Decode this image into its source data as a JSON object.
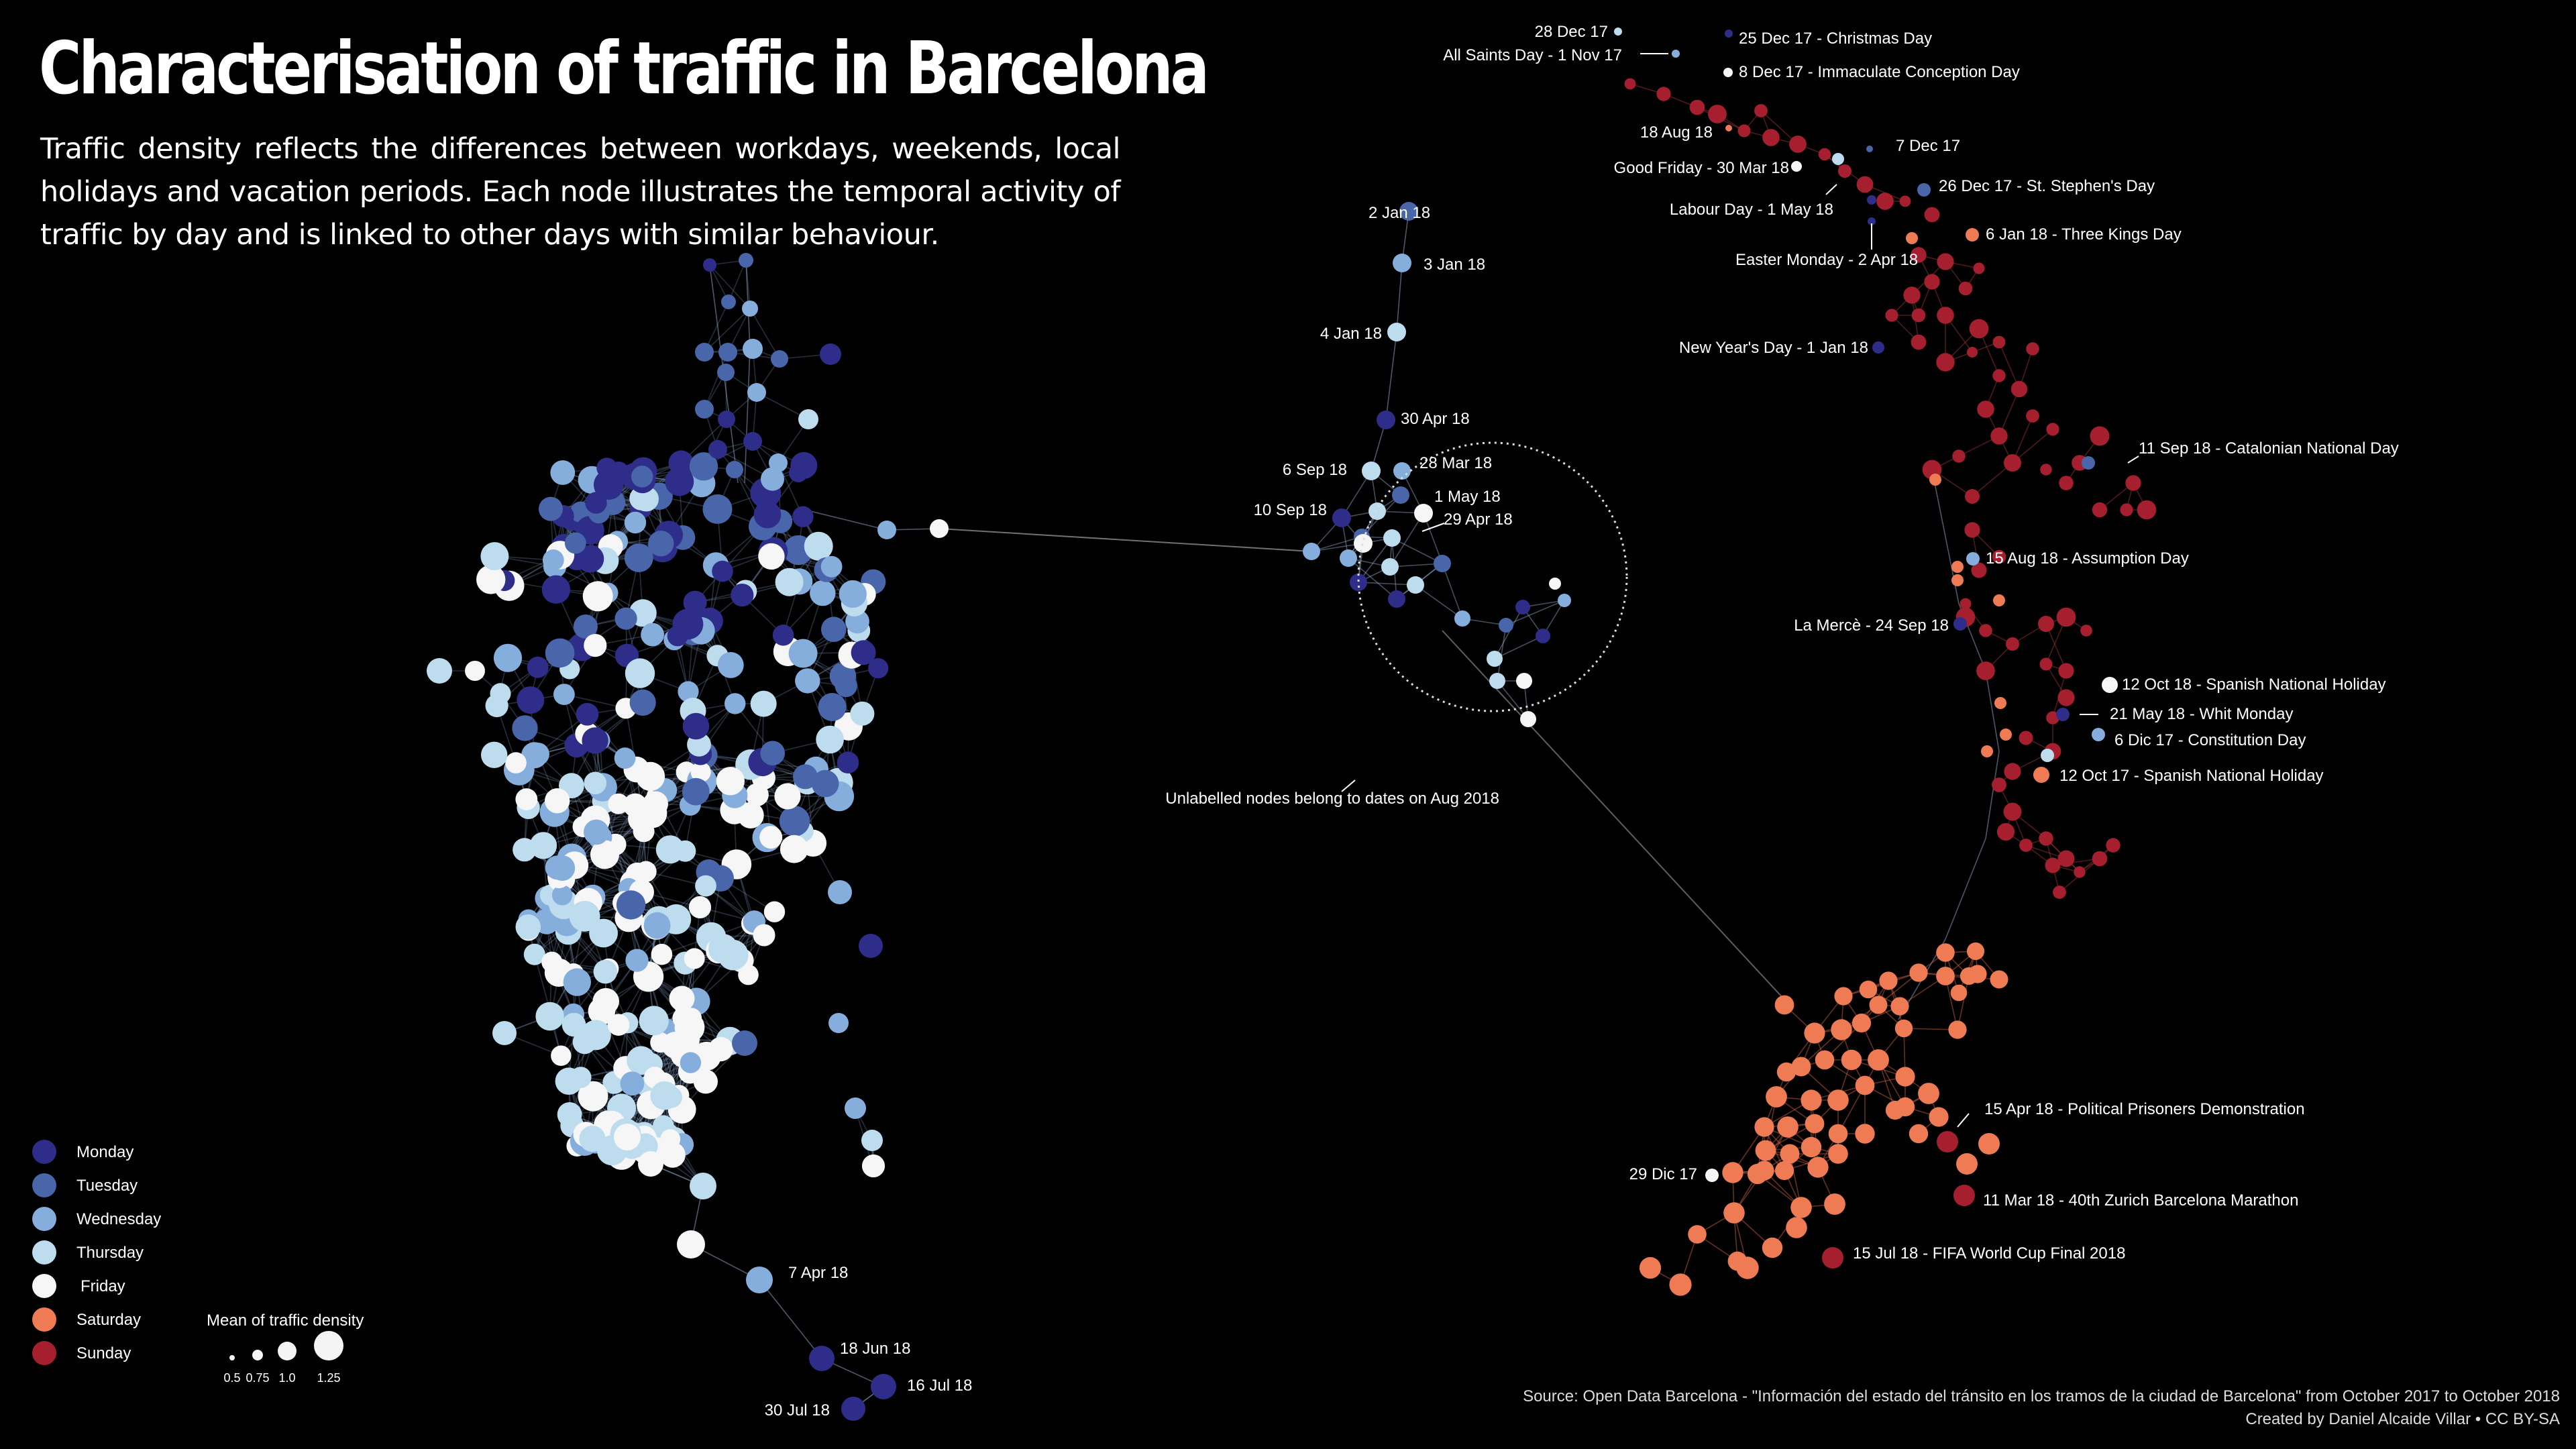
{
  "title": "Characterisation of traffic in Barcelona",
  "subtitle": "Traffic density reflects the differences between workdays, weekends, local holidays and vacation periods. Each node illustrates the temporal activity of traffic by day and is linked to other days with similar behaviour.",
  "source": "Source:  Open Data Barcelona  - \"Información del estado del tránsito en los tramos de la ciudad de Barcelona\" from October 2017 to October 2018",
  "credit": "Created by Daniel Alcaide Villar • CC BY-SA",
  "colors": {
    "Monday": "#2e2d8a",
    "Tuesday": "#4a66aa",
    "Wednesday": "#86aedc",
    "Thursday": "#bddcee",
    "Friday": "#f6f6f6",
    "Saturday": "#ef7b54",
    "Sunday": "#a61f2e"
  },
  "legend": {
    "days": [
      "Monday",
      "Tuesday",
      "Wednesday",
      "Thursday",
      "Friday",
      "Saturday",
      "Sunday"
    ],
    "size_title": "Mean of traffic density",
    "size_values": [
      "0.5",
      "0.75",
      "1.0",
      "1.25"
    ]
  },
  "annotations": {
    "circle_note": "Unlabelled nodes belong to dates on Aug 2018"
  },
  "labels": [
    {
      "text": "2 Jan 18",
      "day": "Tuesday"
    },
    {
      "text": "3 Jan 18",
      "day": "Wednesday"
    },
    {
      "text": "4 Jan 18",
      "day": "Thursday"
    },
    {
      "text": "30 Apr 18",
      "day": "Monday"
    },
    {
      "text": "6 Sep 18",
      "day": "Thursday"
    },
    {
      "text": "28 Mar 18",
      "day": "Wednesday"
    },
    {
      "text": "1 May 18",
      "day": "Tuesday"
    },
    {
      "text": "29 Apr 18",
      "day": "Sunday"
    },
    {
      "text": "10 Sep 18",
      "day": "Monday"
    },
    {
      "text": "7 Apr 18",
      "day": "Saturday"
    },
    {
      "text": "18 Jun 18",
      "day": "Monday"
    },
    {
      "text": "16 Jul 18",
      "day": "Monday"
    },
    {
      "text": "30 Jul 18",
      "day": "Monday"
    },
    {
      "text": "28 Dec 17",
      "day": "Thursday"
    },
    {
      "text": "All Saints Day - 1 Nov 17",
      "day": "Wednesday"
    },
    {
      "text": "25 Dec 17 - Christmas Day",
      "day": "Monday"
    },
    {
      "text": "8 Dec 17 - Immaculate Conception Day",
      "day": "Friday"
    },
    {
      "text": "18 Aug 18",
      "day": "Saturday"
    },
    {
      "text": "7 Dec 17",
      "day": "Thursday"
    },
    {
      "text": "Good Friday - 30 Mar 18",
      "day": "Friday"
    },
    {
      "text": "26 Dec 17 - St. Stephen's Day",
      "day": "Tuesday"
    },
    {
      "text": "Labour Day - 1 May 18",
      "day": "Tuesday"
    },
    {
      "text": "Easter Monday - 2 Apr 18",
      "day": "Monday"
    },
    {
      "text": "6 Jan 18 - Three Kings Day",
      "day": "Saturday"
    },
    {
      "text": "New Year's Day - 1 Jan 18",
      "day": "Monday"
    },
    {
      "text": "11 Sep 18 - Catalonian National Day",
      "day": "Tuesday"
    },
    {
      "text": "15 Aug 18 - Assumption Day",
      "day": "Wednesday"
    },
    {
      "text": "La Mercè - 24 Sep 18",
      "day": "Monday"
    },
    {
      "text": "12 Oct 18 - Spanish National Holiday",
      "day": "Friday"
    },
    {
      "text": "21 May 18 - Whit Monday",
      "day": "Monday"
    },
    {
      "text": "6 Dic 17 - Constitution Day",
      "day": "Wednesday"
    },
    {
      "text": "12 Oct 17 - Spanish National Holiday",
      "day": "Thursday"
    },
    {
      "text": "15 Apr 18 - Political Prisoners Demonstration",
      "day": "Sunday"
    },
    {
      "text": "29 Dic 17",
      "day": "Friday"
    },
    {
      "text": "11 Mar 18 - 40th Zurich Barcelona Marathon",
      "day": "Sunday"
    },
    {
      "text": "15 Jul 18 - FIFA World Cup Final 2018",
      "day": "Sunday"
    }
  ]
}
